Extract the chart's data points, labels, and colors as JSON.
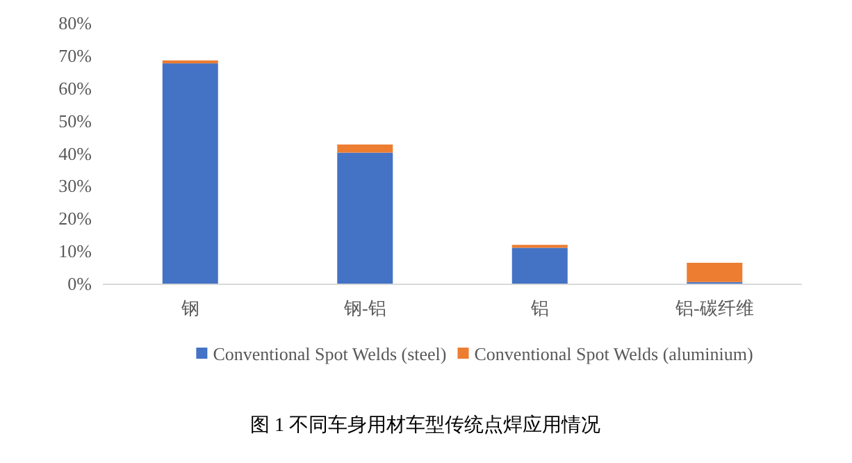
{
  "chart_data": {
    "type": "bar",
    "stacked": true,
    "title": "图 1 不同车身用材车型传统点焊应用情况",
    "categories": [
      "钢",
      "钢-铝",
      "铝",
      "铝-碳纤维"
    ],
    "series": [
      {
        "name": "Conventional Spot Welds (steel)",
        "color": "#4472c4",
        "values": [
          67.6,
          40.2,
          11.0,
          0.5
        ]
      },
      {
        "name": "Conventional Spot Welds (aluminium)",
        "color": "#ed7d31",
        "values": [
          0.9,
          2.5,
          0.9,
          5.9
        ]
      }
    ],
    "ylim": [
      0,
      80
    ],
    "yticks": [
      {
        "value": 0,
        "label": "0%"
      },
      {
        "value": 10,
        "label": "10%"
      },
      {
        "value": 20,
        "label": "20%"
      },
      {
        "value": 30,
        "label": "30%"
      },
      {
        "value": 40,
        "label": "40%"
      },
      {
        "value": 50,
        "label": "50%"
      },
      {
        "value": 60,
        "label": "60%"
      },
      {
        "value": 70,
        "label": "70%"
      },
      {
        "value": 80,
        "label": "80%"
      }
    ],
    "grid": false,
    "legend": "bottom"
  }
}
